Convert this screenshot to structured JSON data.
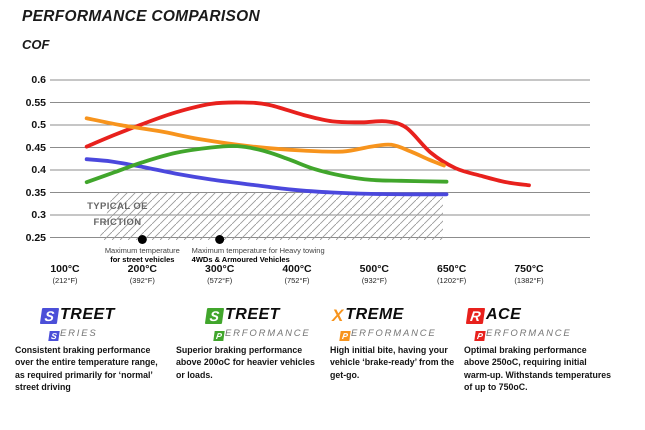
{
  "header": {
    "title": "PERFORMANCE COMPARISON",
    "axis_label": "COF"
  },
  "chart_data": {
    "type": "line",
    "title": "PERFORMANCE COMPARISON",
    "ylabel": "COF",
    "ylim": [
      0.25,
      0.6
    ],
    "grid": true,
    "y_ticks": [
      "0.6",
      "0.55",
      "0.5",
      "0.45",
      "0.4",
      "0.35",
      "0.3",
      "0.25"
    ],
    "x_ticks": [
      {
        "temp": 100,
        "celsius": "100°C",
        "fahrenheit": "(212°F)"
      },
      {
        "temp": 200,
        "celsius": "200°C",
        "fahrenheit": "(392°F)"
      },
      {
        "temp": 300,
        "celsius": "300°C",
        "fahrenheit": "(572°F)"
      },
      {
        "temp": 400,
        "celsius": "400°C",
        "fahrenheit": "(752°F)"
      },
      {
        "temp": 500,
        "celsius": "500°C",
        "fahrenheit": "(932°F)"
      },
      {
        "temp": 650,
        "celsius": "650°C",
        "fahrenheit": "(1202°F)"
      },
      {
        "temp": 750,
        "celsius": "750°C",
        "fahrenheit": "(1382°F)"
      }
    ],
    "series": [
      {
        "name": "Race Performance",
        "color": "#e8211d",
        "points": [
          [
            128,
            0.452
          ],
          [
            164,
            0.478
          ],
          [
            200,
            0.502
          ],
          [
            243,
            0.528
          ],
          [
            289,
            0.547
          ],
          [
            329,
            0.55
          ],
          [
            363,
            0.545
          ],
          [
            409,
            0.522
          ],
          [
            446,
            0.508
          ],
          [
            484,
            0.506
          ],
          [
            523,
            0.508
          ],
          [
            562,
            0.494
          ],
          [
            610,
            0.438
          ],
          [
            655,
            0.404
          ],
          [
            688,
            0.387
          ],
          [
            720,
            0.373
          ],
          [
            750,
            0.366
          ]
        ]
      },
      {
        "name": "Xtreme Performance",
        "color": "#f7941d",
        "points": [
          [
            128,
            0.515
          ],
          [
            171,
            0.5
          ],
          [
            223,
            0.486
          ],
          [
            276,
            0.468
          ],
          [
            343,
            0.452
          ],
          [
            409,
            0.443
          ],
          [
            459,
            0.441
          ],
          [
            496,
            0.452
          ],
          [
            533,
            0.456
          ],
          [
            571,
            0.441
          ],
          [
            606,
            0.423
          ],
          [
            635,
            0.41
          ]
        ]
      },
      {
        "name": "Street Series",
        "color": "#4b48dd",
        "points": [
          [
            128,
            0.424
          ],
          [
            160,
            0.419
          ],
          [
            200,
            0.407
          ],
          [
            243,
            0.392
          ],
          [
            289,
            0.379
          ],
          [
            343,
            0.367
          ],
          [
            396,
            0.356
          ],
          [
            446,
            0.35
          ],
          [
            496,
            0.347
          ],
          [
            570,
            0.346
          ],
          [
            640,
            0.346
          ]
        ]
      },
      {
        "name": "Street Performance",
        "color": "#41a62c",
        "points": [
          [
            128,
            0.373
          ],
          [
            164,
            0.395
          ],
          [
            200,
            0.417
          ],
          [
            243,
            0.438
          ],
          [
            289,
            0.45
          ],
          [
            323,
            0.453
          ],
          [
            356,
            0.443
          ],
          [
            389,
            0.424
          ],
          [
            421,
            0.403
          ],
          [
            459,
            0.387
          ],
          [
            496,
            0.378
          ],
          [
            552,
            0.376
          ],
          [
            640,
            0.374
          ]
        ]
      }
    ],
    "oe_band": {
      "label_line1": "TYPICAL OE",
      "label_line2": "FRICTION",
      "cof_min": 0.25,
      "cof_max": 0.35
    },
    "markers": [
      {
        "temp": 200,
        "line1": "Maximum temperature",
        "line2": "for street vehicles",
        "align": "center"
      },
      {
        "temp": 300,
        "line1": "Maximum temperature for Heavy towing",
        "line2": "4WDs & Armoured Vehicles",
        "align": "left"
      }
    ]
  },
  "products": [
    {
      "id": "street-series",
      "color": "#4b4fd8",
      "line1_letter": "S",
      "line1_boxed": true,
      "line1_rest": "TREET",
      "line2_letter": "S",
      "line2_rest": "ERIES",
      "description": "Consistent braking performance over the entire temperature range, as required primarily for ‘normal’ street driving"
    },
    {
      "id": "street-performance",
      "color": "#41a62c",
      "line1_letter": "S",
      "line1_boxed": true,
      "line1_rest": "TREET",
      "line2_letter": "P",
      "line2_rest": "ERFORMANCE",
      "description": "Superior braking performance above 200oC for heavier vehicles or loads."
    },
    {
      "id": "xtreme-performance",
      "color": "#f7941d",
      "line1_letter": "X",
      "line1_boxed": false,
      "line1_rest": "TREME",
      "line2_letter": "P",
      "line2_rest": "ERFORMANCE",
      "description": "High initial bite, having your vehicle ‘brake-ready’ from the get-go."
    },
    {
      "id": "race-performance",
      "color": "#e8211d",
      "line1_letter": "R",
      "line1_boxed": true,
      "line1_rest": "ACE",
      "line2_letter": "P",
      "line2_rest": "ERFORMANCE",
      "description": "Optimal braking performance above 250oC, requiring initial warm-up. Withstands temperatures of up to 750oC."
    }
  ]
}
